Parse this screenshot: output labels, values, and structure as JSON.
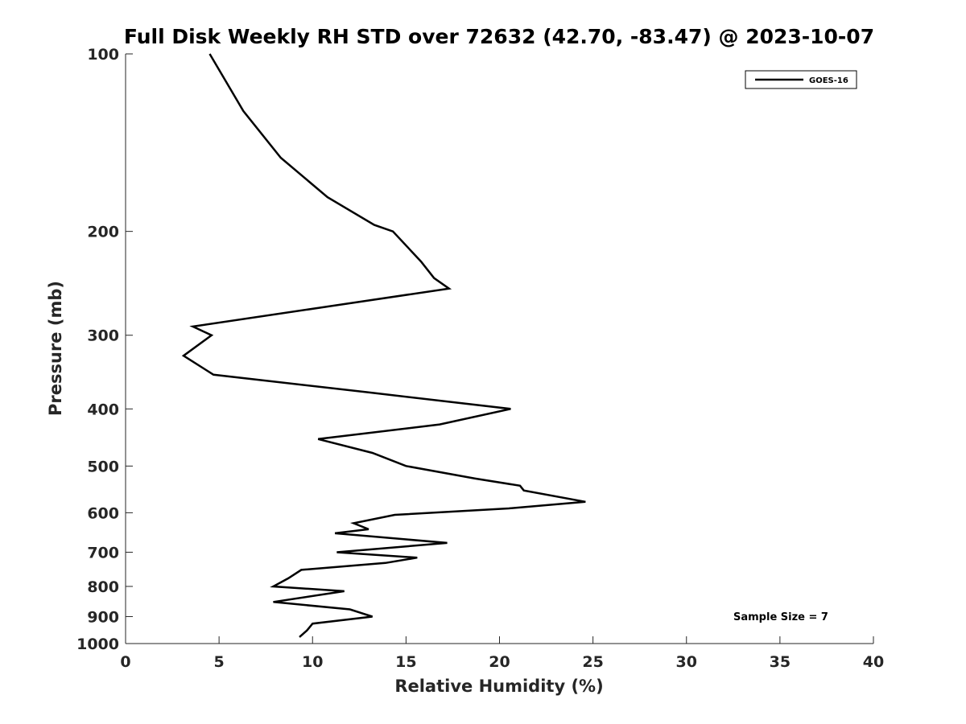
{
  "chart_data": {
    "type": "line",
    "title": "Full Disk Weekly RH STD over 72632 (42.70, -83.47) @ 2023-10-07",
    "xlabel": "Relative Humidity (%)",
    "ylabel": "Pressure (mb)",
    "xlim": [
      0,
      40
    ],
    "ylim": [
      100,
      1000
    ],
    "y_scale": "log",
    "y_reversed": true,
    "x_ticks": [
      0,
      5,
      10,
      15,
      20,
      25,
      30,
      35,
      40
    ],
    "y_ticks": [
      100,
      200,
      300,
      400,
      500,
      600,
      700,
      800,
      900,
      1000
    ],
    "grid": false,
    "legend_position": "top-right",
    "line_color": "#000000",
    "annotation": "Sample Size = 7",
    "series": [
      {
        "name": "GOES-16",
        "points": [
          [
            4.5,
            100
          ],
          [
            6.3,
            125
          ],
          [
            8.3,
            150
          ],
          [
            10.8,
            175
          ],
          [
            13.3,
            195
          ],
          [
            14.3,
            200
          ],
          [
            15.8,
            225
          ],
          [
            16.5,
            240
          ],
          [
            17.3,
            250
          ],
          [
            3.6,
            290
          ],
          [
            4.6,
            300
          ],
          [
            3.1,
            325
          ],
          [
            4.7,
            350
          ],
          [
            13.0,
            375
          ],
          [
            20.6,
            400
          ],
          [
            16.8,
            425
          ],
          [
            10.3,
            450
          ],
          [
            13.2,
            475
          ],
          [
            15.0,
            500
          ],
          [
            18.7,
            525
          ],
          [
            21.1,
            540
          ],
          [
            21.3,
            550
          ],
          [
            24.6,
            575
          ],
          [
            20.5,
            590
          ],
          [
            14.4,
            605
          ],
          [
            12.2,
            625
          ],
          [
            13.0,
            640
          ],
          [
            11.2,
            650
          ],
          [
            17.2,
            675
          ],
          [
            11.3,
            700
          ],
          [
            15.6,
            715
          ],
          [
            13.9,
            730
          ],
          [
            9.4,
            750
          ],
          [
            8.7,
            775
          ],
          [
            7.9,
            800
          ],
          [
            11.7,
            815
          ],
          [
            7.9,
            850
          ],
          [
            12.0,
            875
          ],
          [
            13.2,
            900
          ],
          [
            10.0,
            925
          ],
          [
            9.7,
            950
          ],
          [
            9.3,
            975
          ]
        ]
      }
    ]
  }
}
